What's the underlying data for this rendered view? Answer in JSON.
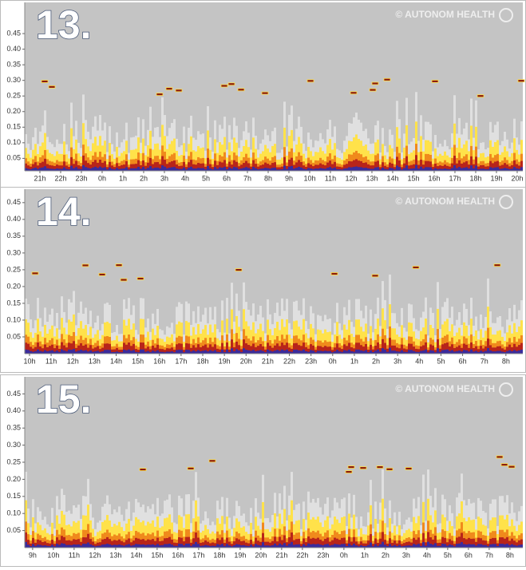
{
  "chart_data": [
    {
      "type": "heatmap",
      "title": "13.",
      "watermark": "© AUTONOM HEALTH",
      "ylim": [
        0.01,
        0.55
      ],
      "yticks": [
        0.05,
        {
          "value": 0.1,
          "label": "0.10"
        },
        0.15,
        {
          "value": 0.2,
          "label": "0.20"
        },
        0.25,
        {
          "value": 0.3,
          "label": "0.30"
        },
        0.35,
        {
          "value": 0.4,
          "label": "0.40"
        },
        0.45
      ],
      "categories": [
        "21h",
        "22h",
        "23h",
        "0h",
        "1h",
        "2h",
        "3h",
        "4h",
        "5h",
        "6h",
        "7h",
        "8h",
        "9h",
        "10h",
        "11h",
        "12h",
        "13h",
        "14h",
        "15h",
        "16h",
        "17h",
        "18h",
        "19h",
        "20h"
      ]
    },
    {
      "type": "heatmap",
      "title": "14.",
      "watermark": "© AUTONOM HEALTH",
      "ylim": [
        0,
        0.49
      ],
      "yticks": [
        0.05,
        {
          "value": 0.1,
          "label": "0.10"
        },
        0.15,
        {
          "value": 0.2,
          "label": "0.20"
        },
        0.25,
        {
          "value": 0.3,
          "label": "0.30"
        },
        0.35,
        {
          "value": 0.4,
          "label": "0.40"
        },
        0.45
      ],
      "categories": [
        "10h",
        "11h",
        "12h",
        "13h",
        "14h",
        "15h",
        "16h",
        "17h",
        "18h",
        "19h",
        "20h",
        "21h",
        "22h",
        "23h",
        "0h",
        "1h",
        "2h",
        "3h",
        "4h",
        "5h",
        "6h",
        "7h",
        "8h"
      ]
    },
    {
      "type": "heatmap",
      "title": "15.",
      "watermark": "© AUTONOM HEALTH",
      "ylim": [
        0,
        0.5
      ],
      "yticks": [
        0.05,
        {
          "value": 0.1,
          "label": "0.10"
        },
        0.15,
        {
          "value": 0.2,
          "label": "0.20"
        },
        0.25,
        {
          "value": 0.3,
          "label": "0.30"
        },
        0.35,
        {
          "value": 0.4,
          "label": "0.40"
        },
        0.45
      ],
      "categories": [
        "9h",
        "10h",
        "11h",
        "12h",
        "13h",
        "14h",
        "15h",
        "16h",
        "17h",
        "18h",
        "19h",
        "20h",
        "21h",
        "22h",
        "23h",
        "0h",
        "1h",
        "2h",
        "3h",
        "4h",
        "5h",
        "6h",
        "7h",
        "8h"
      ]
    }
  ]
}
